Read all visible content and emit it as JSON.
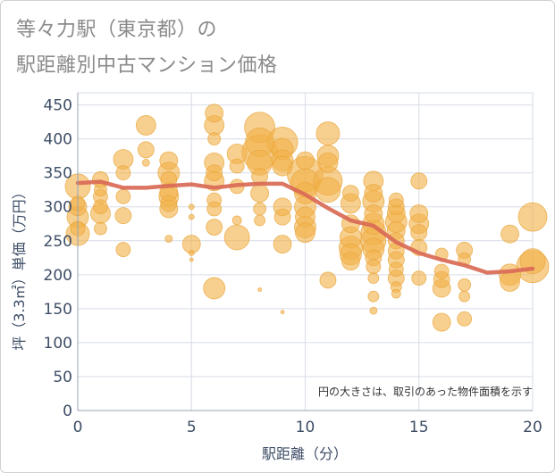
{
  "title": {
    "line1": "等々力駅（東京都）の",
    "line2": "駅距離別中古マンション価格"
  },
  "note": "円の大きさは、取引のあった物件面積を示す",
  "colors": {
    "bubble_fill": "#f2b24a",
    "bubble_stroke": "#e8a53a",
    "trend_line": "#d96a55",
    "grid": "#d6dce6",
    "axis_text": "#3d4d66"
  },
  "chart_data": {
    "type": "scatter",
    "xlabel": "駅距離（分）",
    "ylabel": "坪（3.3㎡）単価（万円）",
    "xlim": [
      0,
      20
    ],
    "ylim": [
      0,
      460
    ],
    "x_ticks": [
      0,
      5,
      10,
      15,
      20
    ],
    "y_ticks": [
      0,
      50,
      100,
      150,
      200,
      250,
      300,
      350,
      400,
      450
    ],
    "grid": true,
    "bubble_size_meaning": "物件面積",
    "points": [
      {
        "x": 0,
        "y": 330,
        "s": 14
      },
      {
        "x": 0,
        "y": 300,
        "s": 10
      },
      {
        "x": 0,
        "y": 285,
        "s": 12
      },
      {
        "x": 0,
        "y": 260,
        "s": 13
      },
      {
        "x": 0,
        "y": 268,
        "s": 8
      },
      {
        "x": 0,
        "y": 305,
        "s": 8
      },
      {
        "x": 1,
        "y": 340,
        "s": 9
      },
      {
        "x": 1,
        "y": 325,
        "s": 7
      },
      {
        "x": 1,
        "y": 315,
        "s": 8
      },
      {
        "x": 1,
        "y": 300,
        "s": 8
      },
      {
        "x": 1,
        "y": 290,
        "s": 11
      },
      {
        "x": 1,
        "y": 268,
        "s": 7
      },
      {
        "x": 2,
        "y": 370,
        "s": 11
      },
      {
        "x": 2,
        "y": 350,
        "s": 8
      },
      {
        "x": 2,
        "y": 315,
        "s": 8
      },
      {
        "x": 2,
        "y": 287,
        "s": 9
      },
      {
        "x": 2,
        "y": 237,
        "s": 8
      },
      {
        "x": 3,
        "y": 420,
        "s": 11
      },
      {
        "x": 3,
        "y": 384,
        "s": 9
      },
      {
        "x": 3,
        "y": 365,
        "s": 4
      },
      {
        "x": 4,
        "y": 368,
        "s": 10
      },
      {
        "x": 4,
        "y": 350,
        "s": 12
      },
      {
        "x": 4,
        "y": 340,
        "s": 9
      },
      {
        "x": 4,
        "y": 322,
        "s": 10
      },
      {
        "x": 4,
        "y": 315,
        "s": 11
      },
      {
        "x": 4,
        "y": 305,
        "s": 9
      },
      {
        "x": 4,
        "y": 297,
        "s": 10
      },
      {
        "x": 4,
        "y": 253,
        "s": 4
      },
      {
        "x": 5,
        "y": 245,
        "s": 10
      },
      {
        "x": 5,
        "y": 232,
        "s": 3
      },
      {
        "x": 5,
        "y": 300,
        "s": 3
      },
      {
        "x": 5,
        "y": 285,
        "s": 3
      },
      {
        "x": 5,
        "y": 222,
        "s": 2
      },
      {
        "x": 6,
        "y": 438,
        "s": 10
      },
      {
        "x": 6,
        "y": 420,
        "s": 11
      },
      {
        "x": 6,
        "y": 400,
        "s": 7
      },
      {
        "x": 6,
        "y": 365,
        "s": 11
      },
      {
        "x": 6,
        "y": 350,
        "s": 9
      },
      {
        "x": 6,
        "y": 338,
        "s": 11
      },
      {
        "x": 6,
        "y": 310,
        "s": 8
      },
      {
        "x": 6,
        "y": 297,
        "s": 8
      },
      {
        "x": 6,
        "y": 270,
        "s": 9
      },
      {
        "x": 6,
        "y": 180,
        "s": 12
      },
      {
        "x": 7,
        "y": 378,
        "s": 11
      },
      {
        "x": 7,
        "y": 360,
        "s": 8
      },
      {
        "x": 7,
        "y": 330,
        "s": 8
      },
      {
        "x": 7,
        "y": 280,
        "s": 5
      },
      {
        "x": 7,
        "y": 255,
        "s": 14
      },
      {
        "x": 8,
        "y": 417,
        "s": 17
      },
      {
        "x": 8,
        "y": 395,
        "s": 16
      },
      {
        "x": 8,
        "y": 380,
        "s": 20
      },
      {
        "x": 8,
        "y": 365,
        "s": 14
      },
      {
        "x": 8,
        "y": 345,
        "s": 9
      },
      {
        "x": 8,
        "y": 320,
        "s": 10
      },
      {
        "x": 8,
        "y": 297,
        "s": 7
      },
      {
        "x": 8,
        "y": 280,
        "s": 6
      },
      {
        "x": 8,
        "y": 178,
        "s": 2
      },
      {
        "x": 9,
        "y": 395,
        "s": 17
      },
      {
        "x": 9,
        "y": 385,
        "s": 12
      },
      {
        "x": 9,
        "y": 368,
        "s": 12
      },
      {
        "x": 9,
        "y": 360,
        "s": 11
      },
      {
        "x": 9,
        "y": 300,
        "s": 10
      },
      {
        "x": 9,
        "y": 285,
        "s": 9
      },
      {
        "x": 9,
        "y": 245,
        "s": 10
      },
      {
        "x": 9,
        "y": 145,
        "s": 2
      },
      {
        "x": 10,
        "y": 368,
        "s": 10
      },
      {
        "x": 10,
        "y": 348,
        "s": 20
      },
      {
        "x": 10,
        "y": 335,
        "s": 16
      },
      {
        "x": 10,
        "y": 320,
        "s": 12
      },
      {
        "x": 10,
        "y": 300,
        "s": 12
      },
      {
        "x": 10,
        "y": 285,
        "s": 11
      },
      {
        "x": 10,
        "y": 270,
        "s": 12
      },
      {
        "x": 10,
        "y": 262,
        "s": 11
      },
      {
        "x": 11,
        "y": 408,
        "s": 13
      },
      {
        "x": 11,
        "y": 375,
        "s": 12
      },
      {
        "x": 11,
        "y": 365,
        "s": 11
      },
      {
        "x": 11,
        "y": 338,
        "s": 16
      },
      {
        "x": 11,
        "y": 325,
        "s": 14
      },
      {
        "x": 11,
        "y": 192,
        "s": 9
      },
      {
        "x": 12,
        "y": 320,
        "s": 9
      },
      {
        "x": 12,
        "y": 305,
        "s": 11
      },
      {
        "x": 12,
        "y": 275,
        "s": 10
      },
      {
        "x": 12,
        "y": 255,
        "s": 12
      },
      {
        "x": 12,
        "y": 240,
        "s": 13
      },
      {
        "x": 12,
        "y": 230,
        "s": 12
      },
      {
        "x": 12,
        "y": 220,
        "s": 10
      },
      {
        "x": 13,
        "y": 338,
        "s": 11
      },
      {
        "x": 13,
        "y": 320,
        "s": 10
      },
      {
        "x": 13,
        "y": 308,
        "s": 12
      },
      {
        "x": 13,
        "y": 290,
        "s": 10
      },
      {
        "x": 13,
        "y": 275,
        "s": 12
      },
      {
        "x": 13,
        "y": 262,
        "s": 14
      },
      {
        "x": 13,
        "y": 250,
        "s": 14
      },
      {
        "x": 13,
        "y": 238,
        "s": 12
      },
      {
        "x": 13,
        "y": 225,
        "s": 9
      },
      {
        "x": 13,
        "y": 212,
        "s": 8
      },
      {
        "x": 13,
        "y": 195,
        "s": 6
      },
      {
        "x": 13,
        "y": 168,
        "s": 6
      },
      {
        "x": 13,
        "y": 147,
        "s": 4
      },
      {
        "x": 14,
        "y": 310,
        "s": 8
      },
      {
        "x": 14,
        "y": 300,
        "s": 9
      },
      {
        "x": 14,
        "y": 290,
        "s": 10
      },
      {
        "x": 14,
        "y": 278,
        "s": 12
      },
      {
        "x": 14,
        "y": 265,
        "s": 10
      },
      {
        "x": 14,
        "y": 250,
        "s": 9
      },
      {
        "x": 14,
        "y": 235,
        "s": 9
      },
      {
        "x": 14,
        "y": 222,
        "s": 9
      },
      {
        "x": 14,
        "y": 208,
        "s": 8
      },
      {
        "x": 14,
        "y": 195,
        "s": 9
      },
      {
        "x": 14,
        "y": 182,
        "s": 6
      },
      {
        "x": 14,
        "y": 172,
        "s": 5
      },
      {
        "x": 15,
        "y": 338,
        "s": 9
      },
      {
        "x": 15,
        "y": 290,
        "s": 10
      },
      {
        "x": 15,
        "y": 275,
        "s": 11
      },
      {
        "x": 15,
        "y": 262,
        "s": 9
      },
      {
        "x": 15,
        "y": 240,
        "s": 9
      },
      {
        "x": 15,
        "y": 195,
        "s": 8
      },
      {
        "x": 16,
        "y": 230,
        "s": 7
      },
      {
        "x": 16,
        "y": 205,
        "s": 8
      },
      {
        "x": 16,
        "y": 193,
        "s": 9
      },
      {
        "x": 16,
        "y": 180,
        "s": 10
      },
      {
        "x": 16,
        "y": 130,
        "s": 10
      },
      {
        "x": 17,
        "y": 236,
        "s": 9
      },
      {
        "x": 17,
        "y": 223,
        "s": 7
      },
      {
        "x": 17,
        "y": 185,
        "s": 7
      },
      {
        "x": 17,
        "y": 168,
        "s": 6
      },
      {
        "x": 17,
        "y": 135,
        "s": 8
      },
      {
        "x": 19,
        "y": 260,
        "s": 10
      },
      {
        "x": 19,
        "y": 200,
        "s": 12
      },
      {
        "x": 19,
        "y": 190,
        "s": 11
      },
      {
        "x": 20,
        "y": 285,
        "s": 16
      },
      {
        "x": 20,
        "y": 220,
        "s": 14
      },
      {
        "x": 20,
        "y": 212,
        "s": 18
      }
    ],
    "trend": [
      {
        "x": 0,
        "y": 335
      },
      {
        "x": 1,
        "y": 337
      },
      {
        "x": 2,
        "y": 328
      },
      {
        "x": 3,
        "y": 328
      },
      {
        "x": 4,
        "y": 331
      },
      {
        "x": 5,
        "y": 333
      },
      {
        "x": 6,
        "y": 328
      },
      {
        "x": 7,
        "y": 332
      },
      {
        "x": 8,
        "y": 334
      },
      {
        "x": 9,
        "y": 334
      },
      {
        "x": 10,
        "y": 318
      },
      {
        "x": 11,
        "y": 298
      },
      {
        "x": 12,
        "y": 280
      },
      {
        "x": 13,
        "y": 272
      },
      {
        "x": 14,
        "y": 248
      },
      {
        "x": 15,
        "y": 232
      },
      {
        "x": 16,
        "y": 222
      },
      {
        "x": 17,
        "y": 214
      },
      {
        "x": 18,
        "y": 203
      },
      {
        "x": 19,
        "y": 205
      },
      {
        "x": 20,
        "y": 209
      }
    ]
  }
}
